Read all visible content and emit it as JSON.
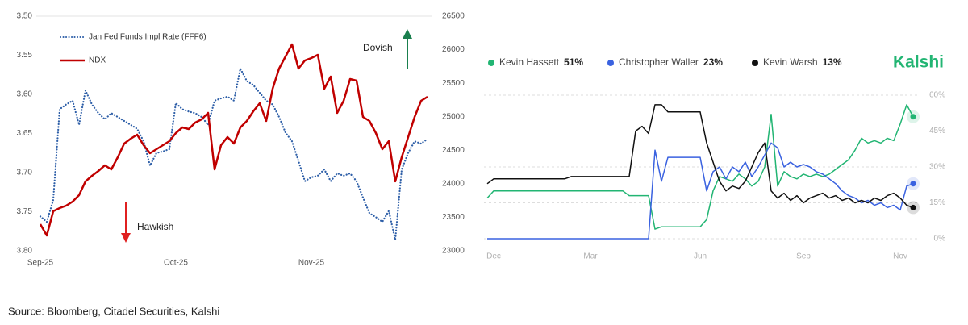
{
  "chart_data": [
    {
      "type": "line",
      "categories": [
        "Sep-25",
        null,
        null,
        null,
        null,
        null,
        null,
        null,
        null,
        null,
        null,
        null,
        null,
        null,
        null,
        null,
        null,
        null,
        null,
        null,
        null,
        "Oct-25",
        null,
        null,
        null,
        null,
        null,
        null,
        null,
        null,
        null,
        null,
        null,
        null,
        null,
        null,
        null,
        null,
        null,
        null,
        null,
        null,
        "Nov-25",
        null,
        null,
        null,
        null,
        null,
        null,
        null,
        null,
        null,
        null,
        null,
        null,
        null,
        null,
        null,
        null,
        null,
        null
      ],
      "series": [
        {
          "name": "Jan Fed Funds Impl Rate (FFF6)",
          "color": "#2e5fa8",
          "style": "dotted",
          "values": [
            3.756,
            3.763,
            3.735,
            3.619,
            3.613,
            3.608,
            3.639,
            3.595,
            3.613,
            3.624,
            3.632,
            3.624,
            3.629,
            3.634,
            3.639,
            3.644,
            3.66,
            3.691,
            3.675,
            3.673,
            3.67,
            3.611,
            3.619,
            3.622,
            3.624,
            3.629,
            3.639,
            3.608,
            3.605,
            3.603,
            3.608,
            3.567,
            3.583,
            3.588,
            3.598,
            3.608,
            3.613,
            3.629,
            3.649,
            3.66,
            3.685,
            3.711,
            3.706,
            3.704,
            3.696,
            3.711,
            3.701,
            3.704,
            3.701,
            3.711,
            3.732,
            3.752,
            3.757,
            3.763,
            3.749,
            3.786,
            3.696,
            3.675,
            3.66,
            3.663,
            3.657
          ]
        },
        {
          "name": "NDX",
          "color": "#c00000",
          "style": "solid",
          "axis": "y2",
          "values": [
            23397,
            23229,
            23590,
            23638,
            23674,
            23734,
            23830,
            24035,
            24119,
            24191,
            24275,
            24215,
            24395,
            24600,
            24672,
            24732,
            24576,
            24455,
            24515,
            24576,
            24636,
            24756,
            24840,
            24816,
            24912,
            24960,
            25057,
            24215,
            24576,
            24696,
            24600,
            24840,
            24936,
            25081,
            25201,
            24936,
            25418,
            25718,
            25899,
            26079,
            25718,
            25838,
            25875,
            25923,
            25418,
            25598,
            25057,
            25237,
            25562,
            25538,
            24997,
            24936,
            24756,
            24515,
            24636,
            24035,
            24395,
            24696,
            24997,
            25237,
            25297
          ]
        }
      ],
      "ylim": [
        3.8,
        3.5
      ],
      "yticks": [
        {
          "value": 3.5,
          "label": "3.50"
        },
        3.55,
        {
          "value": 3.6,
          "label": "3.60"
        },
        3.65,
        {
          "value": 3.7,
          "label": "3.70"
        },
        3.75,
        {
          "value": 3.8,
          "label": "3.80"
        }
      ],
      "y2lim": [
        23000,
        26500
      ],
      "y2ticks": [
        23000,
        23500,
        24000,
        24500,
        25000,
        25500,
        26000,
        26500
      ],
      "grid": false,
      "legend": "upper left",
      "annotations": [
        "Dovish",
        "Hawkish"
      ]
    },
    {
      "type": "line",
      "brand": "Kalshi",
      "categories": [
        null,
        "Dec",
        null,
        null,
        null,
        null,
        null,
        null,
        null,
        null,
        null,
        null,
        null,
        null,
        null,
        null,
        "Mar",
        null,
        null,
        null,
        null,
        null,
        null,
        null,
        null,
        null,
        null,
        null,
        null,
        null,
        null,
        null,
        null,
        "Jun",
        null,
        null,
        null,
        null,
        null,
        null,
        null,
        null,
        null,
        null,
        null,
        null,
        null,
        null,
        null,
        "Sep",
        null,
        null,
        null,
        null,
        null,
        null,
        null,
        null,
        null,
        null,
        null,
        null,
        null,
        null,
        "Nov",
        null,
        null
      ],
      "series": [
        {
          "name": "Kevin Hassett",
          "color": "#22b573",
          "legend_value": {
            "value": 51,
            "label": "51%"
          },
          "values": [
            17,
            20,
            20,
            20,
            20,
            20,
            20,
            20,
            20,
            20,
            20,
            20,
            20,
            20,
            20,
            20,
            20,
            20,
            20,
            20,
            20,
            20,
            18,
            18,
            18,
            18,
            4,
            5,
            5,
            5,
            5,
            5,
            5,
            5,
            8,
            20,
            26,
            25,
            24,
            27,
            25,
            22,
            24,
            30,
            52,
            22,
            28,
            26,
            25,
            27,
            26,
            27,
            26,
            27,
            29,
            31,
            33,
            37,
            42,
            40,
            41,
            40,
            42,
            41,
            48,
            56,
            51
          ]
        },
        {
          "name": "Christopher Waller",
          "color": "#3a62e0",
          "legend_value": {
            "value": 23,
            "label": "23%"
          },
          "values": [
            0,
            0,
            0,
            0,
            0,
            0,
            0,
            0,
            0,
            0,
            0,
            0,
            0,
            0,
            0,
            0,
            0,
            0,
            0,
            0,
            0,
            0,
            0,
            0,
            0,
            0,
            37,
            24,
            34,
            34,
            34,
            34,
            34,
            34,
            20,
            28,
            30,
            25,
            30,
            28,
            32,
            26,
            30,
            35,
            40,
            38,
            30,
            32,
            30,
            31,
            30,
            28,
            27,
            25,
            23,
            20,
            18,
            17,
            15,
            16,
            14,
            15,
            13,
            14,
            12,
            22,
            23
          ]
        },
        {
          "name": "Kevin Warsh",
          "color": "#111111",
          "legend_value": {
            "value": 13,
            "label": "13%"
          },
          "values": [
            23,
            25,
            25,
            25,
            25,
            25,
            25,
            25,
            25,
            25,
            25,
            25,
            25,
            26,
            26,
            26,
            26,
            26,
            26,
            26,
            26,
            26,
            26,
            45,
            47,
            44,
            56,
            56,
            53,
            53,
            53,
            53,
            53,
            53,
            40,
            32,
            24,
            20,
            22,
            21,
            24,
            30,
            36,
            40,
            20,
            17,
            19,
            16,
            18,
            15,
            17,
            18,
            19,
            17,
            18,
            16,
            17,
            15,
            16,
            15,
            17,
            16,
            18,
            19,
            17,
            14,
            13
          ]
        }
      ],
      "ylim": [
        0,
        60
      ],
      "yticks": [
        {
          "value": 0,
          "label": "0%"
        },
        {
          "value": 15,
          "label": "15%"
        },
        {
          "value": 30,
          "label": "30%"
        },
        {
          "value": 45,
          "label": "45%"
        },
        {
          "value": 60,
          "label": "60%"
        }
      ],
      "grid": true,
      "yaxis_side": "right",
      "legend": "top"
    }
  ],
  "source": "Source: Bloomberg, Citadel Securities, Kalshi"
}
